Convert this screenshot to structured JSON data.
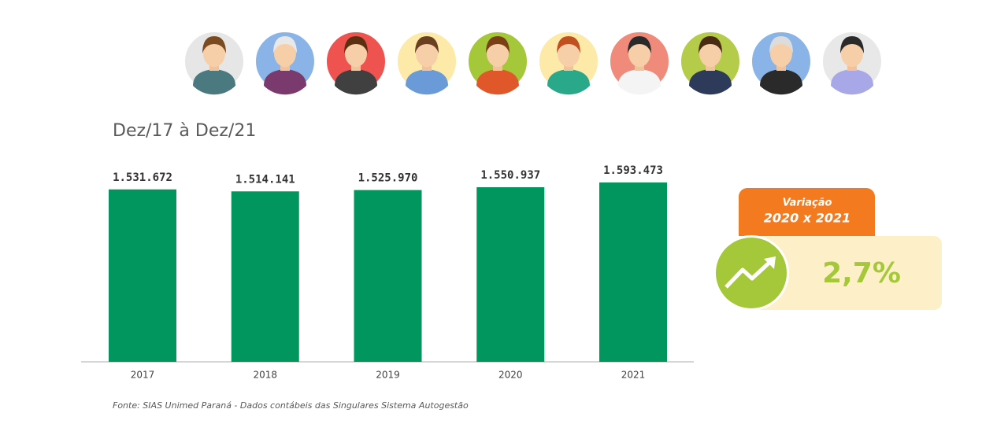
{
  "chart_data": {
    "type": "bar",
    "title": "Dez/17 à Dez/21",
    "categories": [
      "2017",
      "2018",
      "2019",
      "2020",
      "2021"
    ],
    "values": [
      1531672,
      1514141,
      1525970,
      1550937,
      1593473
    ],
    "value_labels": [
      "1.531.672",
      "1.514.141",
      "1.525.970",
      "1.550.937",
      "1.593.473"
    ],
    "color": "#00965e",
    "ylim": [
      0,
      1600000
    ],
    "source": "Fonte: SIAS Unimed Paraná - Dados contábeis das Singulares Sistema Autogestão"
  },
  "badge": {
    "title": "Variação",
    "period": "2020 x 2021",
    "value": "2,7%"
  }
}
